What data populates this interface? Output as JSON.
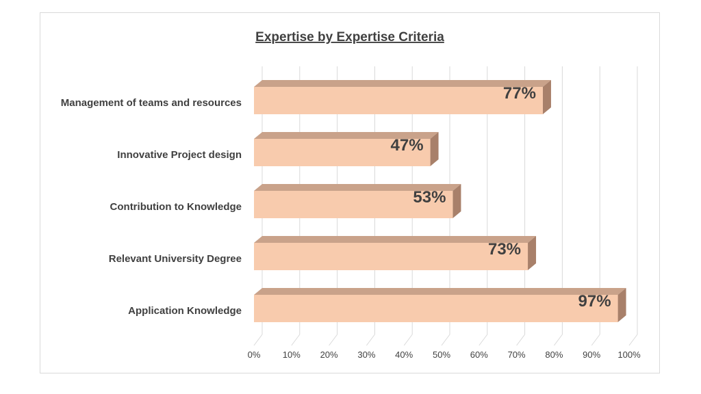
{
  "chart_data": {
    "type": "bar",
    "orientation": "horizontal",
    "style": "3d-clustered",
    "title": "Expertise by Expertise Criteria",
    "categories": [
      "Management of teams and resources",
      "Innovative Project design",
      "Contribution to Knowledge",
      "Relevant University Degree",
      "Application Knowledge"
    ],
    "values": [
      77,
      47,
      53,
      73,
      97
    ],
    "data_labels": [
      "77%",
      "47%",
      "53%",
      "73%",
      "97%"
    ],
    "x_ticks": [
      "0%",
      "10%",
      "20%",
      "30%",
      "40%",
      "50%",
      "60%",
      "70%",
      "80%",
      "90%",
      "100%"
    ],
    "xlim": [
      0,
      100
    ],
    "grid": true,
    "legend": "none",
    "colors": {
      "bar_front": "#f8cbad",
      "bar_top": "#c9a28a",
      "bar_side": "#a8806a"
    }
  }
}
